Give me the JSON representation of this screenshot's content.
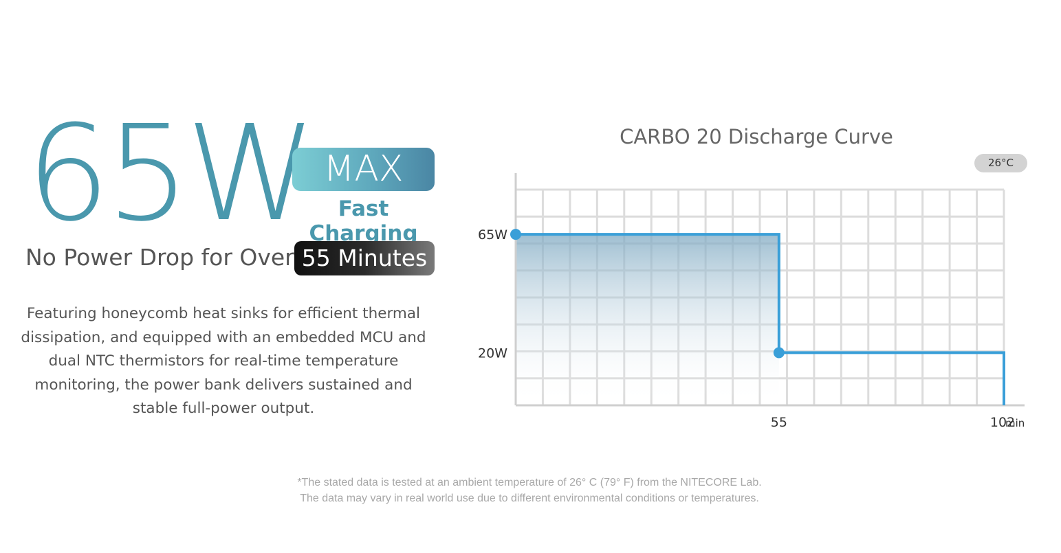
{
  "headline": {
    "power": "65W",
    "max_badge": "MAX",
    "fast_charging": "Fast Charging",
    "drop_label": "No Power Drop for Over",
    "minutes_badge": "55 Minutes"
  },
  "description": "Featuring honeycomb heat sinks for efficient thermal dissipation, and equipped with an embedded MCU and dual NTC thermistors for real-time temperature monitoring, the power bank delivers sustained and stable full-power output.",
  "footnote": {
    "line1": "*The stated data is tested at an ambient temperature of 26° C (79° F) from the NITECORE Lab.",
    "line2": "The data may vary in real world use due to different environmental conditions or temperatures."
  },
  "colors": {
    "brand_teal": "#4a98ad",
    "curve_blue": "#3a9fd8",
    "grid": "#dcdcdc",
    "axis": "#cfcfcf"
  },
  "chart_data": {
    "type": "line",
    "title": "CARBO 20 Discharge Curve",
    "badge": "26°C",
    "x_unit": "min",
    "x_ticks": [
      "55",
      "102"
    ],
    "y_ticks": [
      "65W",
      "20W"
    ],
    "series": [
      {
        "points": [
          {
            "x": 0,
            "y": 65
          },
          {
            "x": 55,
            "y": 65
          },
          {
            "x": 55,
            "y": 20
          },
          {
            "x": 102,
            "y": 20
          },
          {
            "x": 102,
            "y": 0
          }
        ]
      }
    ],
    "markers": [
      {
        "x": 0,
        "y": 65
      },
      {
        "x": 55,
        "y": 20
      }
    ],
    "xlim": [
      0,
      102
    ],
    "ylim": [
      0,
      82
    ],
    "grid": true
  }
}
